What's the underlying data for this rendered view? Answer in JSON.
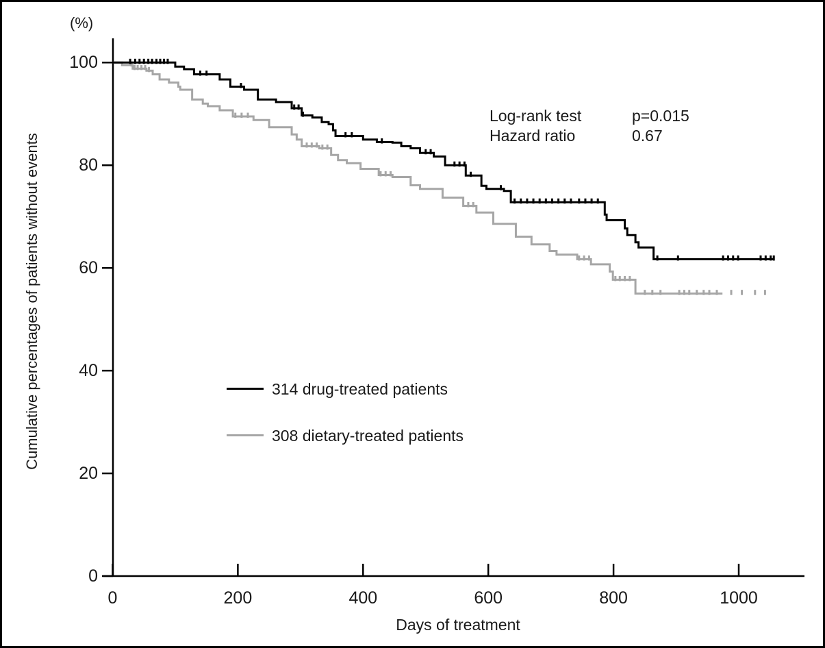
{
  "figure": {
    "y_unit_label": "(%)",
    "ylabel": "Cumulative percentages of patients without events",
    "xlabel": "Days of treatment",
    "stats": {
      "rows": [
        {
          "label": "Log-rank test",
          "value": "p=0.015"
        },
        {
          "label": "Hazard ratio",
          "value": "0.67"
        }
      ]
    }
  },
  "chart_data": {
    "type": "line",
    "subtype": "kaplan-meier-step",
    "title": "",
    "xlabel": "Days of treatment",
    "ylabel": "Cumulative percentages of patients without events (%)",
    "xlim": [
      0,
      1110
    ],
    "ylim": [
      0,
      100
    ],
    "x_ticks": [
      0,
      200,
      400,
      600,
      800,
      1000
    ],
    "y_ticks": [
      0,
      20,
      40,
      60,
      80,
      100
    ],
    "grid": false,
    "legend_position": "center-left inside plot",
    "axis_color": "#000000",
    "annotations": [
      {
        "text": "Log-rank test  p=0.015",
        "x": 600,
        "y": 88
      },
      {
        "text": "Hazard ratio  0.67",
        "x": 600,
        "y": 84
      }
    ],
    "series": [
      {
        "name": "314 drug-treated patients",
        "n": 314,
        "color": "#000000",
        "steps": [
          [
            0,
            100
          ],
          [
            94,
            100
          ],
          [
            100,
            99.2
          ],
          [
            114,
            98.7
          ],
          [
            130,
            97.7
          ],
          [
            168,
            97.7
          ],
          [
            171,
            96.7
          ],
          [
            188,
            95.3
          ],
          [
            210,
            94.7
          ],
          [
            232,
            92.8
          ],
          [
            261,
            92.3
          ],
          [
            286,
            91.1
          ],
          [
            302,
            89.7
          ],
          [
            319,
            89.3
          ],
          [
            334,
            88.4
          ],
          [
            345,
            88.0
          ],
          [
            352,
            86.8
          ],
          [
            356,
            85.7
          ],
          [
            385,
            85.7
          ],
          [
            400,
            85.0
          ],
          [
            422,
            84.5
          ],
          [
            447,
            84.4
          ],
          [
            461,
            83.7
          ],
          [
            476,
            83.3
          ],
          [
            491,
            82.4
          ],
          [
            513,
            81.7
          ],
          [
            531,
            80.0
          ],
          [
            564,
            78.0
          ],
          [
            589,
            76.0
          ],
          [
            597,
            75.4
          ],
          [
            625,
            75.0
          ],
          [
            636,
            72.8
          ],
          [
            783,
            72.8
          ],
          [
            786,
            70.4
          ],
          [
            789,
            69.3
          ],
          [
            816,
            69.3
          ],
          [
            818,
            67.7
          ],
          [
            822,
            66.4
          ],
          [
            835,
            65.0
          ],
          [
            840,
            64.0
          ],
          [
            859,
            64.0
          ],
          [
            864,
            61.7
          ],
          [
            1056,
            61.7
          ]
        ],
        "censor_days": [
          28,
          36,
          43,
          50,
          57,
          63,
          70,
          76,
          82,
          88,
          140,
          150,
          205,
          290,
          297,
          304,
          372,
          382,
          430,
          500,
          508,
          546,
          554,
          562,
          572,
          620,
          642,
          652,
          662,
          672,
          682,
          692,
          702,
          712,
          722,
          732,
          745,
          755,
          765,
          775,
          870,
          903,
          975,
          983,
          991,
          999,
          1035,
          1043,
          1051,
          1056
        ]
      },
      {
        "name": "308 dietary-treated patients",
        "n": 308,
        "color": "#a6a6a6",
        "steps": [
          [
            0,
            100
          ],
          [
            15,
            99.5
          ],
          [
            32,
            98.8
          ],
          [
            54,
            98.4
          ],
          [
            64,
            97.7
          ],
          [
            75,
            96.7
          ],
          [
            90,
            96.1
          ],
          [
            105,
            95.3
          ],
          [
            108,
            94.7
          ],
          [
            127,
            92.8
          ],
          [
            144,
            92.0
          ],
          [
            152,
            91.5
          ],
          [
            171,
            90.7
          ],
          [
            192,
            89.5
          ],
          [
            225,
            88.8
          ],
          [
            250,
            87.4
          ],
          [
            286,
            86.0
          ],
          [
            294,
            85.0
          ],
          [
            302,
            83.7
          ],
          [
            330,
            83.3
          ],
          [
            349,
            82.0
          ],
          [
            360,
            81.0
          ],
          [
            374,
            80.4
          ],
          [
            396,
            79.3
          ],
          [
            425,
            78.1
          ],
          [
            447,
            77.7
          ],
          [
            476,
            76.1
          ],
          [
            491,
            75.4
          ],
          [
            527,
            73.7
          ],
          [
            560,
            72.1
          ],
          [
            581,
            70.8
          ],
          [
            608,
            68.6
          ],
          [
            644,
            66.1
          ],
          [
            669,
            64.6
          ],
          [
            698,
            63.3
          ],
          [
            709,
            62.6
          ],
          [
            742,
            61.7
          ],
          [
            764,
            60.7
          ],
          [
            794,
            59.3
          ],
          [
            799,
            57.7
          ],
          [
            832,
            57.7
          ],
          [
            835,
            55.0
          ],
          [
            974,
            55.0
          ]
        ],
        "censor_days": [
          30,
          35,
          40,
          46,
          52,
          58,
          196,
          206,
          216,
          310,
          318,
          326,
          335,
          343,
          428,
          436,
          444,
          568,
          576,
          745,
          753,
          761,
          803,
          810,
          818,
          826,
          850,
          862,
          875,
          905,
          913,
          921,
          933,
          944,
          953,
          965,
          988,
          1005,
          1026,
          1042
        ]
      }
    ]
  }
}
